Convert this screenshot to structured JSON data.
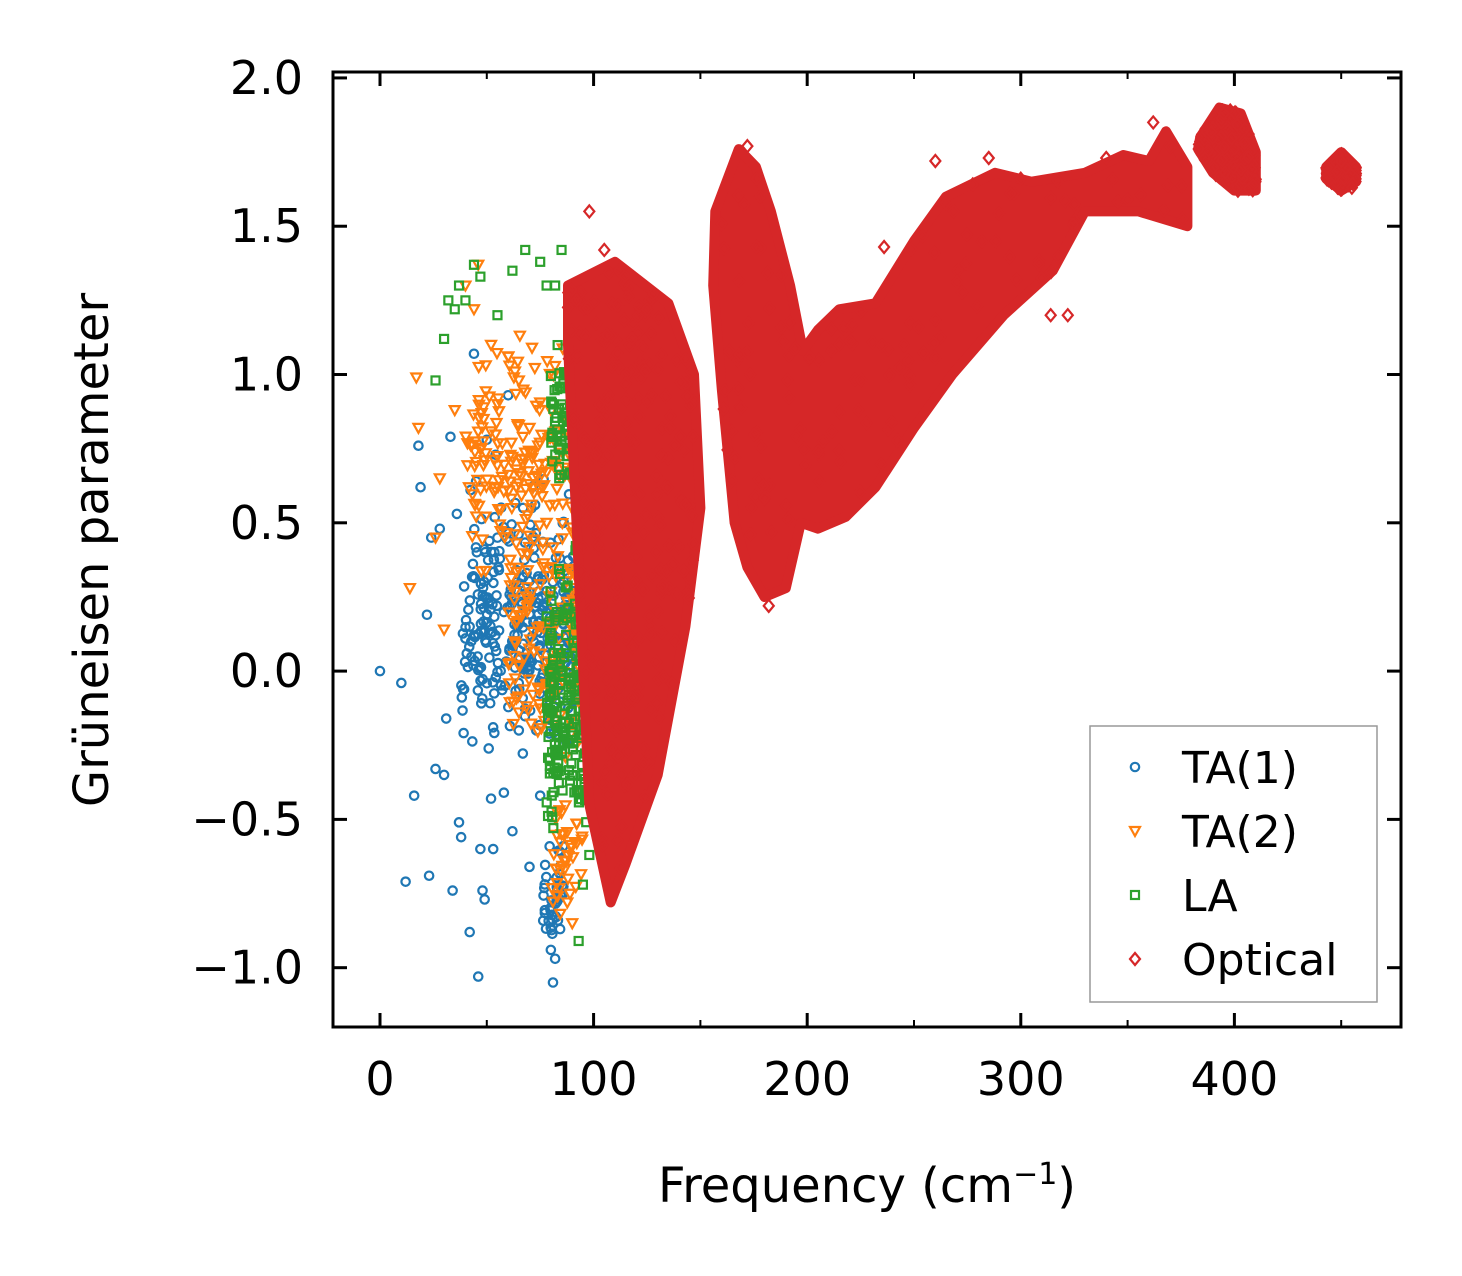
{
  "chart_data": {
    "type": "scatter",
    "xlabel_main": "Frequency (cm",
    "xlabel_sup": "−1",
    "xlabel_end": ")",
    "ylabel": "Grüneisen parameter",
    "xlim": [
      -22,
      478
    ],
    "ylim": [
      -1.2,
      2.02
    ],
    "xticks": [
      0,
      100,
      200,
      300,
      400
    ],
    "xtick_labels": [
      "0",
      "100",
      "200",
      "300",
      "400"
    ],
    "yticks": [
      -1.0,
      -0.5,
      0.0,
      0.5,
      1.0,
      1.5,
      2.0
    ],
    "ytick_labels": [
      "−1.0",
      "−0.5",
      "0.0",
      "0.5",
      "1.0",
      "1.5",
      "2.0"
    ],
    "legend_location": "lower-right",
    "series": [
      {
        "name": "TA(1)",
        "marker": "circle",
        "color": "#1f77b4",
        "points": [
          [
            0,
            0.0
          ],
          [
            10,
            -0.04
          ],
          [
            12,
            -0.71
          ],
          [
            16,
            -0.42
          ],
          [
            18,
            0.76
          ],
          [
            19,
            0.62
          ],
          [
            22,
            0.19
          ],
          [
            23,
            -0.69
          ],
          [
            24,
            0.45
          ],
          [
            26,
            -0.33
          ],
          [
            28,
            0.48
          ],
          [
            30,
            -0.35
          ],
          [
            31,
            -0.16
          ],
          [
            33,
            0.79
          ],
          [
            34,
            -0.74
          ],
          [
            36,
            0.53
          ],
          [
            37,
            -0.51
          ],
          [
            38,
            -0.56
          ],
          [
            40,
            0.11
          ],
          [
            42,
            -0.88
          ],
          [
            44,
            1.07
          ],
          [
            45,
            0.64
          ],
          [
            46,
            -1.03
          ],
          [
            47,
            -0.6
          ],
          [
            48,
            -0.74
          ],
          [
            49,
            -0.77
          ],
          [
            50,
            0.78
          ],
          [
            52,
            -0.43
          ],
          [
            53,
            -0.6
          ],
          [
            55,
            0.45
          ],
          [
            58,
            -0.41
          ],
          [
            60,
            0.93
          ],
          [
            62,
            -0.54
          ],
          [
            64,
            0.3
          ],
          [
            65,
            -0.2
          ],
          [
            67,
            0.55
          ],
          [
            70,
            -0.66
          ],
          [
            72,
            0.1
          ],
          [
            75,
            -0.42
          ],
          [
            78,
            0.27
          ],
          [
            80,
            -0.94
          ],
          [
            81,
            -1.05
          ],
          [
            82,
            -0.97
          ]
        ],
        "clusters": [
          {
            "x": [
              38,
              92
            ],
            "y": [
              -0.35,
              0.55
            ],
            "n": 230
          },
          {
            "x": [
              42,
              90
            ],
            "y": [
              -0.2,
              0.85
            ],
            "n": 80
          },
          {
            "x": [
              76,
              86
            ],
            "y": [
              -1.0,
              -0.5
            ],
            "n": 40
          }
        ]
      },
      {
        "name": "TA(2)",
        "marker": "triangle-down",
        "color": "#ff7f0e",
        "points": [
          [
            14,
            0.28
          ],
          [
            17,
            0.99
          ],
          [
            18,
            0.82
          ],
          [
            26,
            0.45
          ],
          [
            28,
            0.65
          ],
          [
            30,
            0.14
          ],
          [
            35,
            0.88
          ],
          [
            40,
            1.3
          ],
          [
            44,
            1.22
          ],
          [
            46,
            1.37
          ],
          [
            52,
            1.1
          ],
          [
            55,
            0.9
          ],
          [
            60,
            1.06
          ],
          [
            65,
            0.98
          ],
          [
            70,
            0.82
          ],
          [
            78,
            0.5
          ],
          [
            85,
            -0.55
          ],
          [
            88,
            -0.7
          ],
          [
            90,
            -0.85
          ]
        ],
        "clusters": [
          {
            "x": [
              40,
              95
            ],
            "y": [
              0.2,
              1.2
            ],
            "n": 200
          },
          {
            "x": [
              60,
              98
            ],
            "y": [
              -0.5,
              0.6
            ],
            "n": 160
          },
          {
            "x": [
              80,
              95
            ],
            "y": [
              -0.95,
              -0.3
            ],
            "n": 40
          }
        ]
      },
      {
        "name": "LA",
        "marker": "square",
        "color": "#2ca02c",
        "points": [
          [
            26,
            0.98
          ],
          [
            30,
            1.12
          ],
          [
            32,
            1.25
          ],
          [
            35,
            1.22
          ],
          [
            37,
            1.3
          ],
          [
            40,
            1.25
          ],
          [
            44,
            1.37
          ],
          [
            47,
            1.33
          ],
          [
            55,
            1.2
          ],
          [
            62,
            1.35
          ],
          [
            68,
            1.42
          ],
          [
            75,
            1.38
          ],
          [
            78,
            1.3
          ],
          [
            82,
            1.3
          ],
          [
            85,
            1.42
          ],
          [
            93,
            -0.91
          ],
          [
            95,
            -0.72
          ],
          [
            98,
            -0.62
          ]
        ],
        "clusters": [
          {
            "x": [
              78,
              104
            ],
            "y": [
              -0.7,
              0.5
            ],
            "n": 260
          },
          {
            "x": [
              80,
              100
            ],
            "y": [
              0.5,
              1.2
            ],
            "n": 120
          }
        ]
      },
      {
        "name": "Optical",
        "marker": "diamond",
        "color": "#d62728",
        "points": [
          [
            92,
            1.25
          ],
          [
            98,
            1.55
          ],
          [
            105,
            1.42
          ],
          [
            112,
            1.35
          ],
          [
            125,
            1.22
          ],
          [
            172,
            1.77
          ],
          [
            178,
            1.6
          ],
          [
            182,
            0.22
          ],
          [
            236,
            1.43
          ],
          [
            260,
            1.72
          ],
          [
            285,
            1.73
          ],
          [
            300,
            1.66
          ],
          [
            314,
            1.2
          ],
          [
            322,
            1.2
          ],
          [
            340,
            1.73
          ],
          [
            362,
            1.85
          ],
          [
            395,
            1.88
          ],
          [
            450,
            1.72
          ],
          [
            455,
            1.63
          ]
        ],
        "polygons": [
          [
            [
              88,
              1.3
            ],
            [
              110,
              1.38
            ],
            [
              135,
              1.24
            ],
            [
              147,
              1.0
            ],
            [
              150,
              0.55
            ],
            [
              143,
              0.15
            ],
            [
              130,
              -0.35
            ],
            [
              115,
              -0.65
            ],
            [
              108,
              -0.78
            ],
            [
              98,
              -0.45
            ],
            [
              92,
              0.5
            ],
            [
              88,
              1.1
            ]
          ],
          [
            [
              157,
              1.55
            ],
            [
              168,
              1.76
            ],
            [
              176,
              1.7
            ],
            [
              183,
              1.55
            ],
            [
              192,
              1.3
            ],
            [
              198,
              1.08
            ],
            [
              205,
              1.15
            ],
            [
              215,
              1.22
            ],
            [
              232,
              1.24
            ],
            [
              250,
              1.45
            ],
            [
              265,
              1.6
            ],
            [
              288,
              1.68
            ],
            [
              305,
              1.65
            ],
            [
              330,
              1.68
            ],
            [
              348,
              1.74
            ],
            [
              360,
              1.72
            ],
            [
              368,
              1.82
            ],
            [
              378,
              1.7
            ],
            [
              378,
              1.5
            ],
            [
              355,
              1.55
            ],
            [
              330,
              1.55
            ],
            [
              315,
              1.35
            ],
            [
              292,
              1.2
            ],
            [
              268,
              1.0
            ],
            [
              250,
              0.82
            ],
            [
              232,
              0.62
            ],
            [
              218,
              0.52
            ],
            [
              205,
              0.48
            ],
            [
              197,
              0.5
            ],
            [
              190,
              0.28
            ],
            [
              180,
              0.25
            ],
            [
              172,
              0.35
            ],
            [
              166,
              0.5
            ],
            [
              160,
              0.95
            ],
            [
              156,
              1.3
            ]
          ],
          [
            [
              384,
              1.8
            ],
            [
              393,
              1.9
            ],
            [
              403,
              1.88
            ],
            [
              410,
              1.75
            ],
            [
              410,
              1.62
            ],
            [
              400,
              1.62
            ],
            [
              390,
              1.68
            ],
            [
              383,
              1.76
            ]
          ],
          [
            [
              443,
              1.7
            ],
            [
              450,
              1.75
            ],
            [
              457,
              1.7
            ],
            [
              457,
              1.65
            ],
            [
              450,
              1.62
            ],
            [
              443,
              1.66
            ]
          ]
        ],
        "fill_n": 900
      }
    ]
  }
}
